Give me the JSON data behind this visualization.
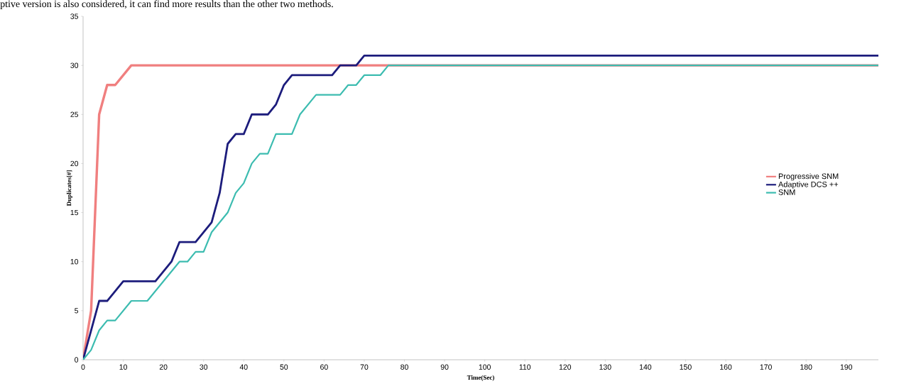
{
  "chart_data": {
    "type": "line",
    "annotations": [
      "ptive version is also considered, it can find more results than the other two methods."
    ],
    "xlabel": "Time(Sec)",
    "ylabel": "Duplicates[#]",
    "xlim": [
      0,
      198
    ],
    "ylim": [
      0,
      35
    ],
    "xticks": [
      0,
      10,
      20,
      30,
      40,
      50,
      60,
      70,
      80,
      90,
      100,
      110,
      120,
      130,
      140,
      150,
      160,
      170,
      180,
      190
    ],
    "yticks": [
      0,
      5,
      10,
      15,
      20,
      25,
      30,
      35
    ],
    "legend": "right",
    "series": [
      {
        "name": "Progressive SNM",
        "color": "#f07f7f",
        "x": [
          0,
          2,
          4,
          6,
          8,
          12,
          198
        ],
        "values": [
          0,
          5,
          25,
          28,
          28,
          30,
          30
        ]
      },
      {
        "name": "Adaptive DCS ++",
        "color": "#1c1c7c",
        "x": [
          0,
          4,
          6,
          10,
          18,
          22,
          24,
          28,
          32,
          34,
          36,
          38,
          40,
          42,
          46,
          48,
          50,
          52,
          62,
          64,
          68,
          70,
          198
        ],
        "values": [
          0,
          6,
          6,
          8,
          8,
          10,
          12,
          12,
          14,
          17,
          22,
          23,
          23,
          25,
          25,
          26,
          28,
          29,
          29,
          30,
          30,
          31,
          31
        ]
      },
      {
        "name": "SNM",
        "color": "#3cbcb0",
        "x": [
          0,
          2,
          4,
          6,
          8,
          12,
          16,
          24,
          26,
          28,
          30,
          32,
          36,
          38,
          40,
          42,
          44,
          46,
          48,
          52,
          54,
          58,
          64,
          66,
          68,
          70,
          74,
          76,
          198
        ],
        "values": [
          0,
          1,
          3,
          4,
          4,
          6,
          6,
          10,
          10,
          11,
          11,
          13,
          15,
          17,
          18,
          20,
          21,
          21,
          23,
          23,
          25,
          27,
          27,
          28,
          28,
          29,
          29,
          30,
          30
        ]
      }
    ]
  }
}
